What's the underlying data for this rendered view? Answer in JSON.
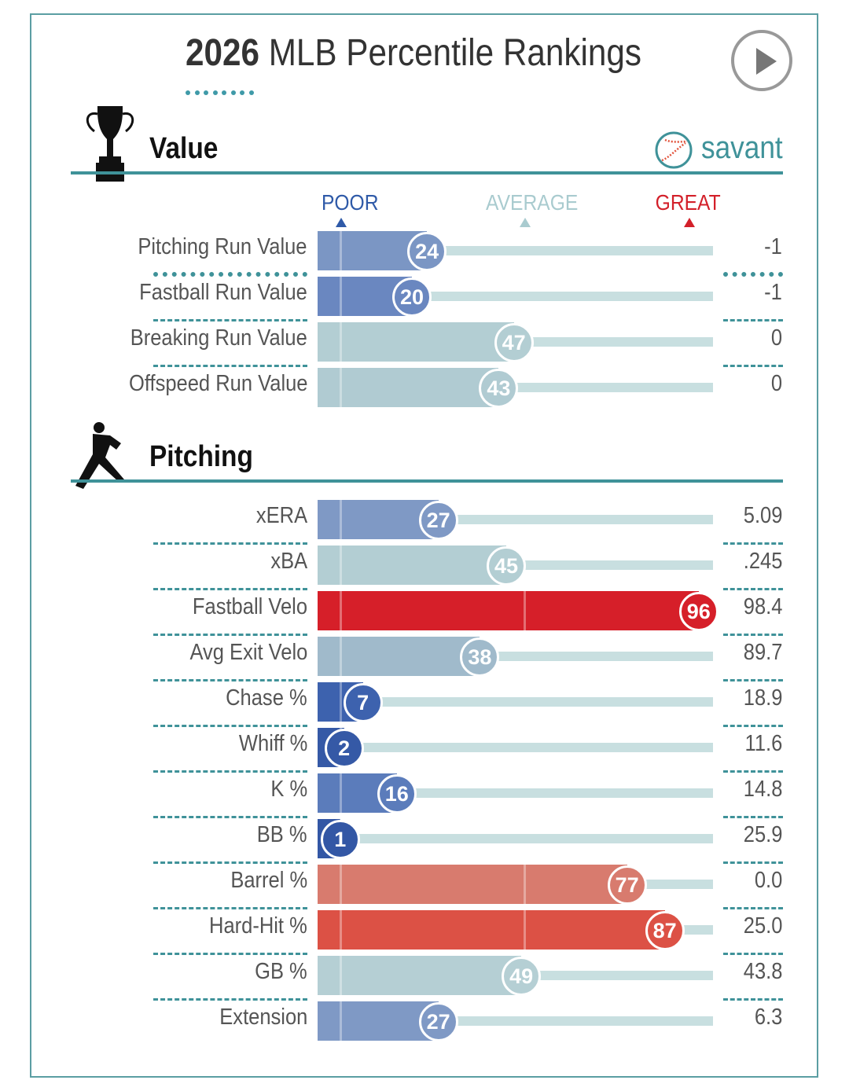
{
  "title": {
    "year": "2026",
    "rest": "MLB Percentile Rankings"
  },
  "brand": "savant",
  "scale": {
    "poor": "POOR",
    "average": "AVERAGE",
    "great": "GREAT",
    "poor_color": "#2f5aa8",
    "average_color": "#a9cbcf",
    "great_color": "#d3202a"
  },
  "chart_data": [
    {
      "type": "bar",
      "title": "Value",
      "xlim": [
        0,
        100
      ],
      "rows": [
        {
          "label": "Pitching Run Value",
          "percentile": 24,
          "value": "-1",
          "color": "#7b96c4"
        },
        {
          "label": "Fastball Run Value",
          "percentile": 20,
          "value": "-1",
          "color": "#6a87c0"
        },
        {
          "label": "Breaking Run Value",
          "percentile": 47,
          "value": "0",
          "color": "#b3ced3"
        },
        {
          "label": "Offspeed Run Value",
          "percentile": 43,
          "value": "0",
          "color": "#b0cbd2"
        }
      ]
    },
    {
      "type": "bar",
      "title": "Pitching",
      "xlim": [
        0,
        100
      ],
      "rows": [
        {
          "label": "xERA",
          "percentile": 27,
          "value": "5.09",
          "color": "#7f99c5"
        },
        {
          "label": "xBA",
          "percentile": 45,
          "value": ".245",
          "color": "#b3ced3"
        },
        {
          "label": "Fastball Velo",
          "percentile": 96,
          "value": "98.4",
          "color": "#d61f29"
        },
        {
          "label": "Avg Exit Velo",
          "percentile": 38,
          "value": "89.7",
          "color": "#a0bacb"
        },
        {
          "label": "Chase %",
          "percentile": 7,
          "value": "18.9",
          "color": "#3d62ae"
        },
        {
          "label": "Whiff %",
          "percentile": 2,
          "value": "11.6",
          "color": "#3559a6"
        },
        {
          "label": "K %",
          "percentile": 16,
          "value": "14.8",
          "color": "#5b7cbb"
        },
        {
          "label": "BB %",
          "percentile": 1,
          "value": "25.9",
          "color": "#3357a5"
        },
        {
          "label": "Barrel %",
          "percentile": 77,
          "value": "0.0",
          "color": "#d87b6e"
        },
        {
          "label": "Hard-Hit %",
          "percentile": 87,
          "value": "25.0",
          "color": "#dc5145"
        },
        {
          "label": "GB %",
          "percentile": 49,
          "value": "43.8",
          "color": "#b5cfd4"
        },
        {
          "label": "Extension",
          "percentile": 27,
          "value": "6.3",
          "color": "#7f99c5"
        }
      ]
    }
  ]
}
